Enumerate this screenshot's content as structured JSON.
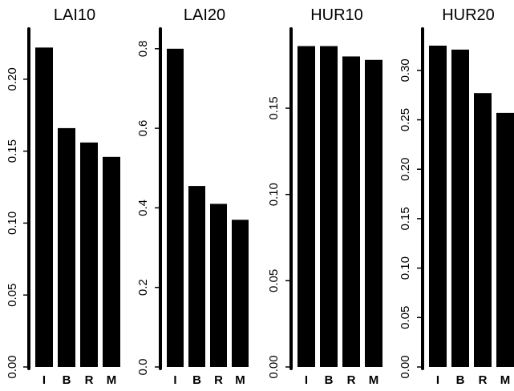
{
  "chart_data": [
    {
      "type": "bar",
      "title": "LAI10",
      "categories": [
        "I",
        "B",
        "R",
        "M"
      ],
      "values": [
        0.222,
        0.166,
        0.156,
        0.146
      ],
      "ylim": [
        0,
        0.235
      ],
      "yticks": [
        "0.00",
        "0.05",
        "0.10",
        "0.15",
        "0.20"
      ],
      "ytick_values": [
        0,
        0.05,
        0.1,
        0.15,
        0.2
      ],
      "xlabel": "",
      "ylabel": "",
      "bar_color": "#000000",
      "grid": false
    },
    {
      "type": "bar",
      "title": "LAI20",
      "categories": [
        "I",
        "B",
        "R",
        "M"
      ],
      "values": [
        0.8,
        0.455,
        0.41,
        0.37
      ],
      "ylim": [
        0,
        0.85
      ],
      "yticks": [
        "0.0",
        "0.2",
        "0.4",
        "0.6",
        "0.8"
      ],
      "ytick_values": [
        0,
        0.2,
        0.4,
        0.6,
        0.8
      ],
      "xlabel": "",
      "ylabel": "",
      "bar_color": "#000000",
      "grid": false
    },
    {
      "type": "bar",
      "title": "HUR10",
      "categories": [
        "I",
        "B",
        "R",
        "M"
      ],
      "values": [
        0.186,
        0.186,
        0.18,
        0.178
      ],
      "ylim": [
        0,
        0.196
      ],
      "yticks": [
        "0.00",
        "0.05",
        "0.10",
        "0.15"
      ],
      "ytick_values": [
        0,
        0.05,
        0.1,
        0.15
      ],
      "xlabel": "",
      "ylabel": "",
      "bar_color": "#000000",
      "grid": false
    },
    {
      "type": "bar",
      "title": "HUR20",
      "categories": [
        "I",
        "B",
        "R",
        "M"
      ],
      "values": [
        0.325,
        0.321,
        0.277,
        0.257
      ],
      "ylim": [
        0,
        0.342
      ],
      "yticks": [
        "0.00",
        "0.05",
        "0.10",
        "0.15",
        "0.20",
        "0.25",
        "0.30"
      ],
      "ytick_values": [
        0,
        0.05,
        0.1,
        0.15,
        0.2,
        0.25,
        0.3
      ],
      "xlabel": "",
      "ylabel": "",
      "bar_color": "#000000",
      "grid": false
    }
  ]
}
